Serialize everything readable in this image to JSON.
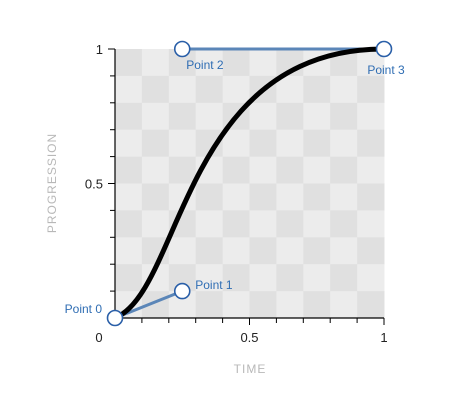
{
  "chart_data": {
    "type": "bezier-curve",
    "xlabel": "TIME",
    "ylabel": "PROGRESSION",
    "xlim": [
      0,
      1
    ],
    "ylim": [
      0,
      1
    ],
    "x_ticks": [
      {
        "value": 0,
        "label": "0"
      },
      {
        "value": 0.5,
        "label": "0.5"
      },
      {
        "value": 1,
        "label": "1"
      }
    ],
    "y_ticks": [
      {
        "value": 0.5,
        "label": "0.5"
      },
      {
        "value": 1,
        "label": "1"
      }
    ],
    "control_points": [
      {
        "name": "Point 0",
        "x": 0.0,
        "y": 0.0
      },
      {
        "name": "Point 1",
        "x": 0.25,
        "y": 0.1
      },
      {
        "name": "Point 2",
        "x": 0.25,
        "y": 1.0
      },
      {
        "name": "Point 3",
        "x": 1.0,
        "y": 1.0
      }
    ],
    "colors": {
      "curve": "#000000",
      "handle_line": "#5b86b8",
      "handle_stroke": "#2a5fa8",
      "label": "#2f6db3",
      "grid_light": "#ececec",
      "grid_dark": "#e0e0e0"
    }
  }
}
